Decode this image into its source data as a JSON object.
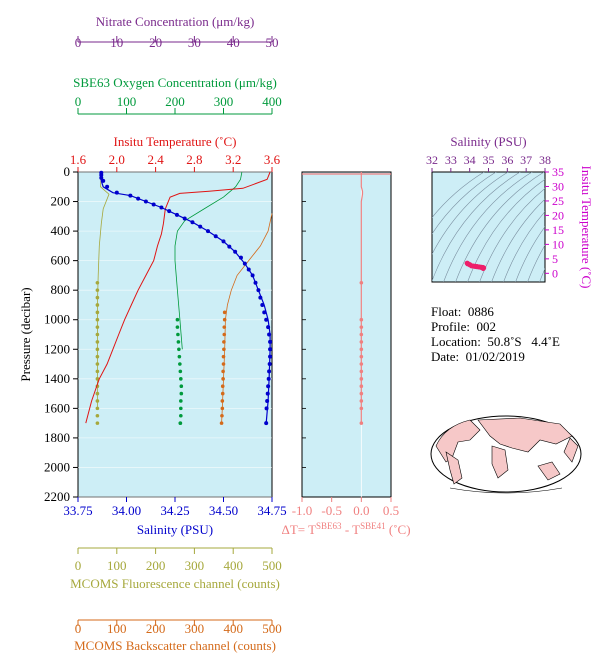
{
  "colors": {
    "panel_bg": "#cdeef6",
    "temperature": "#e01414",
    "salinity": "#0000cc",
    "oxygen": "#009a3c",
    "nitrate": "#7a2a8c",
    "fluorescence": "#a6a83c",
    "backscatter": "#d46a1a",
    "delta_t": "#f08080",
    "ts_dots": "#ee1f6a"
  },
  "float_info": {
    "float": "Float:  0886",
    "profile": "Profile:  002",
    "location": "Location:  50.8˚S   4.4˚E",
    "date": "Date:  01/02/2019"
  },
  "chart_data": [
    {
      "type": "line",
      "panel": "main-profile",
      "y_axis": {
        "label": "Pressure (decibar)",
        "range": [
          0,
          2200
        ],
        "reversed": true,
        "ticks": [
          0,
          200,
          400,
          600,
          800,
          1000,
          1200,
          1400,
          1600,
          1800,
          2000,
          2200
        ]
      },
      "axes": {
        "temperature": {
          "label": "Insitu Temperature (˚C)",
          "range": [
            1.6,
            3.6
          ],
          "ticks": [
            "1.6",
            "2.0",
            "2.4",
            "2.8",
            "3.2",
            "3.6"
          ]
        },
        "salinity": {
          "label": "Salinity (PSU)",
          "range": [
            33.75,
            34.75
          ],
          "ticks": [
            "33.75",
            "34.00",
            "34.25",
            "34.50",
            "34.75"
          ]
        },
        "oxygen": {
          "label": "SBE63 Oxygen Concentration (μm/kg)",
          "range": [
            0,
            400
          ],
          "ticks": [
            "0",
            "100",
            "200",
            "300",
            "400"
          ]
        },
        "nitrate": {
          "label": "Nitrate Concentration (μm/kg)",
          "range": [
            0,
            50
          ],
          "ticks": [
            "0",
            "10",
            "20",
            "30",
            "40",
            "50"
          ]
        },
        "fluorescence": {
          "label": "MCOMS Fluorescence channel (counts)",
          "range": [
            0,
            500
          ],
          "ticks": [
            "0",
            "100",
            "200",
            "300",
            "400",
            "500"
          ]
        },
        "backscatter": {
          "label": "MCOMS Backscatter channel (counts)",
          "range": [
            0,
            500
          ],
          "ticks": [
            "0",
            "100",
            "200",
            "300",
            "400",
            "500"
          ]
        }
      },
      "series": {
        "temperature": {
          "x": [
            3.58,
            3.55,
            3.3,
            2.95,
            2.65,
            2.55,
            2.5,
            2.48,
            2.46,
            2.42,
            2.38,
            2.3,
            2.22,
            2.15,
            2.08,
            2.02,
            1.96,
            1.9,
            1.82,
            1.74,
            1.68
          ],
          "y": [
            0,
            50,
            110,
            130,
            145,
            170,
            250,
            350,
            420,
            500,
            600,
            700,
            800,
            900,
            1000,
            1100,
            1200,
            1300,
            1400,
            1550,
            1700
          ]
        },
        "salinity": {
          "x": [
            33.87,
            33.87,
            33.88,
            33.93,
            34.02,
            34.1,
            34.18,
            34.26,
            34.34,
            34.42,
            34.5,
            34.56,
            34.61,
            34.65,
            34.68,
            34.71,
            34.73,
            34.74,
            34.74,
            34.735,
            34.73,
            34.72
          ],
          "y": [
            0,
            60,
            100,
            140,
            160,
            200,
            240,
            290,
            340,
            400,
            470,
            540,
            620,
            700,
            800,
            900,
            1000,
            1100,
            1200,
            1400,
            1550,
            1700
          ]
        },
        "salinity_samples": {
          "x": [
            33.87,
            33.87,
            33.87,
            33.88,
            33.9,
            33.95,
            34.02,
            34.06,
            34.1,
            34.14,
            34.18,
            34.22,
            34.26,
            34.3,
            34.34,
            34.38,
            34.42,
            34.46,
            34.5,
            34.53,
            34.56,
            34.59,
            34.61,
            34.63,
            34.65,
            34.665,
            34.68,
            34.69,
            34.7,
            34.71,
            34.72,
            34.73,
            34.735,
            34.74,
            34.74,
            34.74,
            34.738,
            34.735,
            34.733,
            34.73,
            34.728,
            34.725,
            34.722,
            34.72
          ],
          "y": [
            5,
            20,
            40,
            60,
            100,
            140,
            160,
            180,
            200,
            220,
            240,
            265,
            290,
            315,
            340,
            370,
            400,
            435,
            470,
            505,
            540,
            580,
            620,
            660,
            700,
            750,
            800,
            850,
            900,
            950,
            1000,
            1050,
            1100,
            1150,
            1200,
            1250,
            1300,
            1350,
            1400,
            1450,
            1500,
            1550,
            1600,
            1700
          ]
        },
        "oxygen": {
          "x": [
            338,
            335,
            325,
            300,
            260,
            220,
            205,
            200,
            200,
            205,
            210,
            215
          ],
          "y": [
            0,
            50,
            100,
            170,
            250,
            330,
            400,
            500,
            600,
            800,
            1000,
            1200
          ]
        },
        "oxygen_samples": {
          "x": [
            205,
            205,
            206,
            207,
            208,
            209,
            210,
            211,
            212,
            213,
            213,
            212,
            212,
            212,
            211,
            211
          ],
          "y": [
            1000,
            1050,
            1100,
            1150,
            1200,
            1250,
            1300,
            1350,
            1400,
            1450,
            1500,
            1550,
            1600,
            1650,
            1700,
            1700
          ]
        },
        "fluorescence": {
          "x": [
            60,
            58,
            80,
            65,
            60,
            55,
            52,
            50,
            50,
            50
          ],
          "y": [
            0,
            100,
            150,
            250,
            350,
            500,
            700,
            900,
            1200,
            1600
          ]
        },
        "fluorescence_samples": {
          "x": [
            50,
            50,
            50,
            50,
            50,
            50,
            50,
            50,
            50,
            50,
            50,
            50,
            50,
            50,
            50,
            50,
            50,
            50,
            50,
            50
          ],
          "y": [
            750,
            800,
            850,
            900,
            950,
            1000,
            1050,
            1100,
            1150,
            1200,
            1250,
            1300,
            1350,
            1400,
            1450,
            1500,
            1550,
            1600,
            1650,
            1700
          ]
        },
        "backscatter": {
          "x": [
            500,
            490,
            470,
            440,
            410,
            395,
            385,
            380,
            378,
            375,
            372,
            370
          ],
          "y": [
            280,
            400,
            500,
            600,
            700,
            800,
            900,
            1000,
            1200,
            1400,
            1600,
            1700
          ]
        },
        "backscatter_samples": {
          "x": [
            378,
            378,
            377,
            377,
            376,
            376,
            375,
            375,
            374,
            374,
            373,
            373,
            372,
            372,
            371,
            370
          ],
          "y": [
            950,
            1000,
            1050,
            1100,
            1150,
            1200,
            1250,
            1300,
            1350,
            1400,
            1450,
            1500,
            1550,
            1600,
            1650,
            1700
          ]
        }
      }
    },
    {
      "type": "line",
      "panel": "delta-t",
      "xlabel": "ΔT= T",
      "xlabel_sup1": "SBE63",
      "xlabel_mid": " - T",
      "xlabel_sup2": "SBE41",
      "xlabel_end": " (˚C)",
      "x_range": [
        -1.0,
        0.5
      ],
      "ticks": [
        "-1.0",
        "-0.5",
        "0.0",
        "0.5"
      ],
      "y_range": [
        0,
        2200
      ],
      "x": [
        0.0,
        0.0,
        0.02,
        0.02,
        0.0,
        0.0,
        0.0,
        0.0
      ],
      "y": [
        0,
        100,
        130,
        150,
        200,
        600,
        1200,
        1700
      ],
      "samples_x": [
        0.0,
        0.0,
        0.0,
        0.0,
        0.0,
        0.0,
        0.0,
        0.0,
        0.0,
        0.0,
        0.0,
        0.0,
        0.0,
        0.0,
        0.0
      ],
      "samples_y": [
        750,
        1000,
        1050,
        1100,
        1150,
        1200,
        1250,
        1300,
        1350,
        1400,
        1450,
        1500,
        1550,
        1600,
        1700
      ]
    },
    {
      "type": "scatter",
      "panel": "ts-diagram",
      "xlabel": "Salinity (PSU)",
      "ylabel": "Insitu Temperature (˚C)",
      "x_range": [
        32,
        38
      ],
      "y_range": [
        -3,
        35
      ],
      "x_ticks": [
        "32",
        "33",
        "34",
        "35",
        "36",
        "37",
        "38"
      ],
      "y_ticks": [
        "0",
        "5",
        "10",
        "15",
        "20",
        "25",
        "30",
        "35"
      ],
      "points_x": [
        33.87,
        33.9,
        34.0,
        34.1,
        34.2,
        34.3,
        34.4,
        34.5,
        34.6,
        34.7,
        34.74,
        34.72
      ],
      "points_y": [
        3.5,
        3.3,
        3.0,
        2.6,
        2.5,
        2.4,
        2.3,
        2.2,
        2.1,
        2.0,
        1.9,
        1.7
      ]
    }
  ]
}
